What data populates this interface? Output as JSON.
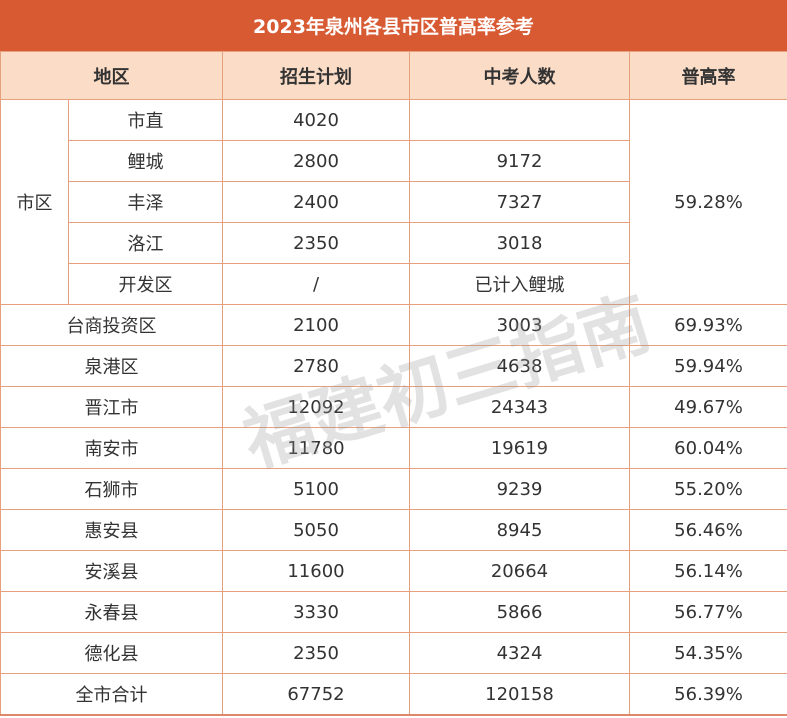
{
  "title": "2023年泉州各县市区普高率参考",
  "headers": {
    "region": "地区",
    "plan": "招生计划",
    "exam": "中考人数",
    "rate": "普高率"
  },
  "city_group": {
    "label": "市区",
    "rate": "59.28%",
    "rows": [
      {
        "name": "市直",
        "plan": "4020",
        "exam": ""
      },
      {
        "name": "鲤城",
        "plan": "2800",
        "exam": "9172"
      },
      {
        "name": "丰泽",
        "plan": "2400",
        "exam": "7327"
      },
      {
        "name": "洛江",
        "plan": "2350",
        "exam": "3018"
      },
      {
        "name": "开发区",
        "plan": "/",
        "exam": "已计入鲤城"
      }
    ]
  },
  "rows": [
    {
      "name": "台商投资区",
      "plan": "2100",
      "exam": "3003",
      "rate": "69.93%"
    },
    {
      "name": "泉港区",
      "plan": "2780",
      "exam": "4638",
      "rate": "59.94%"
    },
    {
      "name": "晋江市",
      "plan": "12092",
      "exam": "24343",
      "rate": "49.67%"
    },
    {
      "name": "南安市",
      "plan": "11780",
      "exam": "19619",
      "rate": "60.04%"
    },
    {
      "name": "石狮市",
      "plan": "5100",
      "exam": "9239",
      "rate": "55.20%"
    },
    {
      "name": "惠安县",
      "plan": "5050",
      "exam": "8945",
      "rate": "56.46%"
    },
    {
      "name": "安溪县",
      "plan": "11600",
      "exam": "20664",
      "rate": "56.14%"
    },
    {
      "name": "永春县",
      "plan": "3330",
      "exam": "5866",
      "rate": "56.77%"
    },
    {
      "name": "德化县",
      "plan": "2350",
      "exam": "4324",
      "rate": "54.35%"
    },
    {
      "name": "全市合计",
      "plan": "67752",
      "exam": "120158",
      "rate": "56.39%"
    }
  ],
  "watermark": "福建初三指南"
}
